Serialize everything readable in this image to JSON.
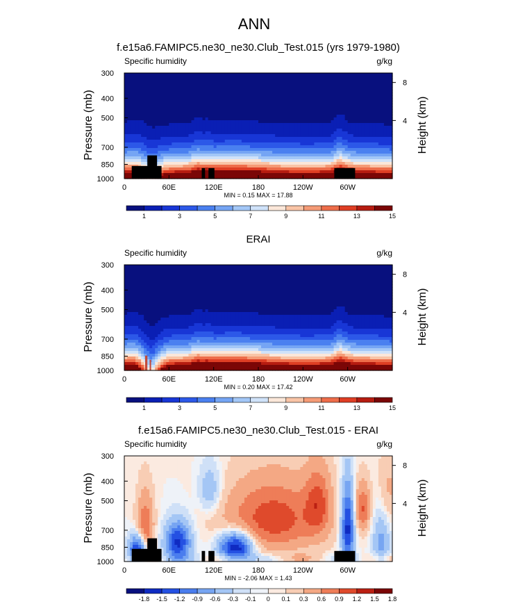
{
  "figure": {
    "main_title": "ANN"
  },
  "colors": {
    "abs_scale": [
      "#08107e",
      "#0a1fb4",
      "#1836d6",
      "#2c58e8",
      "#4a80f0",
      "#75a5f4",
      "#a3c7f7",
      "#cfe2f9",
      "#fbe7d9",
      "#f9c4a6",
      "#f59b76",
      "#ee6d4a",
      "#df3e24",
      "#b61c11",
      "#7b0606"
    ],
    "diff_scale": [
      "#08107e",
      "#0f2bc2",
      "#2450e2",
      "#4a7dee",
      "#77a5f2",
      "#a4c6f5",
      "#cfe0f7",
      "#eef2f8",
      "#fbeae0",
      "#f8cdb4",
      "#f4a884",
      "#ee7d58",
      "#df4a2c",
      "#bb2013",
      "#7b0606"
    ],
    "topography": "#000000"
  },
  "chart_data": [
    {
      "type": "heatmap",
      "title": "f.e15a6.FAMIPC5.ne30_ne30.Club_Test.015 (yrs 1979-1980)",
      "left_label": "Specific humidity",
      "right_label": "g/kg",
      "ylabel": "Pressure (mb)",
      "ylabel_right": "Height (km)",
      "y_ticks": [
        "300",
        "400",
        "500",
        "700",
        "850",
        "1000"
      ],
      "y_right_ticks": [
        "8",
        "4"
      ],
      "x_ticks": [
        "0",
        "60E",
        "120E",
        "180",
        "120W",
        "60W"
      ],
      "stats": "MIN =   0.15  MAX =  17.88",
      "colorbar_labels": [
        "1",
        "3",
        "5",
        "7",
        "9",
        "11",
        "13",
        "15"
      ],
      "min": 0.15,
      "max": 17.88,
      "zlim": [
        0,
        16
      ]
    },
    {
      "type": "heatmap",
      "title": "ERAI",
      "left_label": "Specific humidity",
      "right_label": "g/kg",
      "ylabel": "Pressure (mb)",
      "ylabel_right": "Height (km)",
      "y_ticks": [
        "300",
        "400",
        "500",
        "700",
        "850",
        "1000"
      ],
      "y_right_ticks": [
        "8",
        "4"
      ],
      "x_ticks": [
        "0",
        "60E",
        "120E",
        "180",
        "120W",
        "60W"
      ],
      "stats": "MIN =   0.20  MAX =  17.42",
      "colorbar_labels": [
        "1",
        "3",
        "5",
        "7",
        "9",
        "11",
        "13",
        "15"
      ],
      "min": 0.2,
      "max": 17.42,
      "zlim": [
        0,
        16
      ]
    },
    {
      "type": "heatmap",
      "title": "f.e15a6.FAMIPC5.ne30_ne30.Club_Test.015 - ERAI",
      "left_label": "Specific humidity",
      "right_label": "g/kg",
      "ylabel": "Pressure (mb)",
      "ylabel_right": "Height (km)",
      "y_ticks": [
        "300",
        "400",
        "500",
        "700",
        "850",
        "1000"
      ],
      "y_right_ticks": [
        "8",
        "4"
      ],
      "x_ticks": [
        "0",
        "60E",
        "120E",
        "180",
        "120W",
        "60W"
      ],
      "stats": "MIN =  -2.06  MAX =   1.43",
      "colorbar_labels": [
        "-1.8",
        "-1.5",
        "-1.2",
        "-0.9",
        "-0.6",
        "-0.3",
        "-0.1",
        "0",
        "0.1",
        "0.3",
        "0.6",
        "0.9",
        "1.2",
        "1.5",
        "1.8"
      ],
      "min": -2.06,
      "max": 1.43,
      "zlim": [
        -2,
        2
      ]
    }
  ]
}
